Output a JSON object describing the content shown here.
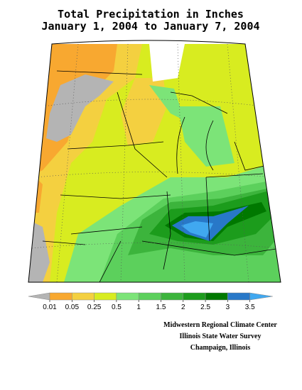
{
  "title": [
    "Total Precipitation in Inches",
    "January 1, 2004 to January 7, 2004"
  ],
  "legend": {
    "labels": [
      0.01,
      0.05,
      0.25,
      0.5,
      1,
      1.5,
      2,
      2.5,
      3,
      3.5
    ],
    "colors": [
      "#b4b4b4",
      "#f8a830",
      "#f4d040",
      "#d8ec20",
      "#7ce478",
      "#5cd05c",
      "#3cb43c",
      "#1c9c1c",
      "#007800",
      "#2878c8",
      "#40a8f0"
    ]
  },
  "credits": [
    "Midwestern Regional Climate Center",
    "Illinois State Water Survey",
    "Champaign, Illinois"
  ]
}
